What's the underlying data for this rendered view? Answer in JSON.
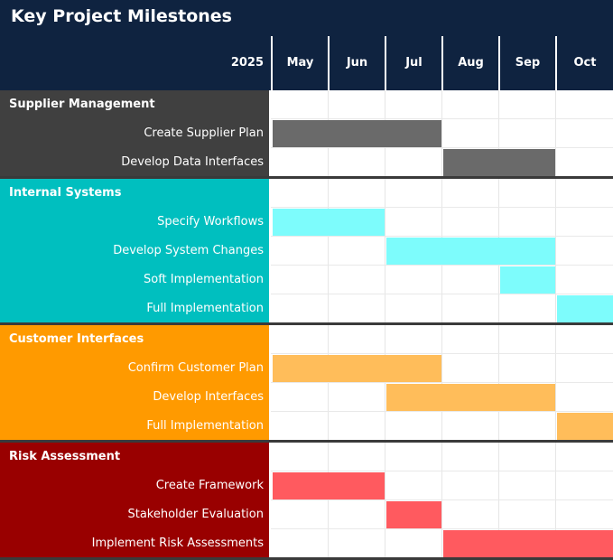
{
  "title": "Key Project Milestones",
  "year": "2025",
  "months": [
    "May",
    "Jun",
    "Jul",
    "Aug",
    "Sep",
    "Oct"
  ],
  "colors": {
    "header_bg": "#0f2340",
    "header_text": "#ffffff",
    "grid": "#e6e6e6",
    "divider": "#3a3a3a"
  },
  "groups": [
    {
      "name": "Supplier Management",
      "band_color": "#404040",
      "bar_color": "#6a6a6a",
      "text_color": "#ffffff",
      "tasks": [
        {
          "name": "Create Supplier Plan",
          "start": 0,
          "end": 3
        },
        {
          "name": "Develop Data Interfaces",
          "start": 3,
          "end": 5
        }
      ]
    },
    {
      "name": "Internal Systems",
      "band_color": "#00bfbf",
      "bar_color": "#7dfcfc",
      "text_color": "#ffffff",
      "tasks": [
        {
          "name": "Specify Workflows",
          "start": 0,
          "end": 2
        },
        {
          "name": "Develop System Changes",
          "start": 2,
          "end": 5
        },
        {
          "name": "Soft Implementation",
          "start": 4,
          "end": 5
        },
        {
          "name": "Full Implementation",
          "start": 5,
          "end": 6
        }
      ]
    },
    {
      "name": "Customer Interfaces",
      "band_color": "#ff9a00",
      "bar_color": "#ffbd5a",
      "text_color": "#ffffff",
      "tasks": [
        {
          "name": "Confirm Customer Plan",
          "start": 0,
          "end": 3
        },
        {
          "name": "Develop Interfaces",
          "start": 2,
          "end": 5
        },
        {
          "name": "Full Implementation",
          "start": 5,
          "end": 6
        }
      ]
    },
    {
      "name": "Risk Assessment",
      "band_color": "#990000",
      "bar_color": "#ff5a5f",
      "text_color": "#ffffff",
      "tasks": [
        {
          "name": "Create Framework",
          "start": 0,
          "end": 2
        },
        {
          "name": "Stakeholder Evaluation",
          "start": 2,
          "end": 3
        },
        {
          "name": "Implement Risk Assessments",
          "start": 3,
          "end": 6
        }
      ]
    }
  ]
}
